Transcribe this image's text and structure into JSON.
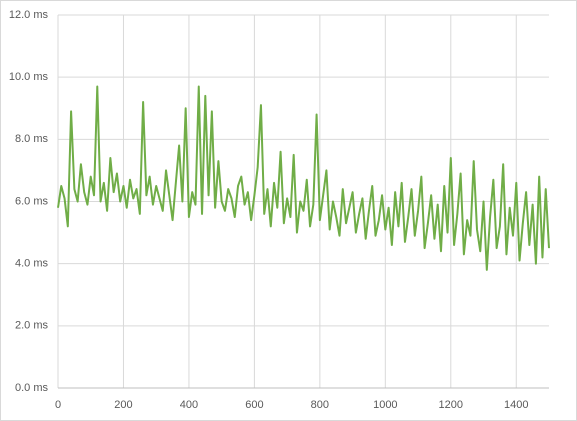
{
  "chart_data": {
    "type": "line",
    "x": [
      0,
      10,
      20,
      30,
      40,
      50,
      60,
      70,
      80,
      90,
      100,
      110,
      120,
      130,
      140,
      150,
      160,
      170,
      180,
      190,
      200,
      210,
      220,
      230,
      240,
      250,
      260,
      270,
      280,
      290,
      300,
      310,
      320,
      330,
      340,
      350,
      360,
      370,
      380,
      390,
      400,
      410,
      420,
      430,
      440,
      450,
      460,
      470,
      480,
      490,
      500,
      510,
      520,
      530,
      540,
      550,
      560,
      570,
      580,
      590,
      600,
      610,
      620,
      630,
      640,
      650,
      660,
      670,
      680,
      690,
      700,
      710,
      720,
      730,
      740,
      750,
      760,
      770,
      780,
      790,
      800,
      810,
      820,
      830,
      840,
      850,
      860,
      870,
      880,
      890,
      900,
      910,
      920,
      930,
      940,
      950,
      960,
      970,
      980,
      990,
      1000,
      1010,
      1020,
      1030,
      1040,
      1050,
      1060,
      1070,
      1080,
      1090,
      1100,
      1110,
      1120,
      1130,
      1140,
      1150,
      1160,
      1170,
      1180,
      1190,
      1200,
      1210,
      1220,
      1230,
      1240,
      1250,
      1260,
      1270,
      1280,
      1290,
      1300,
      1310,
      1320,
      1330,
      1340,
      1350,
      1360,
      1370,
      1380,
      1390,
      1400,
      1410,
      1420,
      1430,
      1440,
      1450,
      1460,
      1470,
      1480,
      1490,
      1500
    ],
    "series": [
      {
        "color": "#70ad47",
        "values": [
          5.8,
          6.5,
          6.1,
          5.2,
          8.9,
          6.4,
          6.0,
          7.2,
          6.3,
          5.9,
          6.8,
          6.2,
          9.7,
          6.0,
          6.6,
          5.7,
          7.4,
          6.3,
          6.9,
          6.0,
          6.5,
          5.8,
          6.7,
          6.1,
          6.4,
          5.6,
          9.2,
          6.2,
          6.8,
          5.9,
          6.5,
          6.1,
          5.7,
          7.0,
          6.2,
          5.4,
          6.6,
          7.8,
          6.0,
          9.0,
          5.5,
          6.3,
          5.9,
          9.7,
          5.6,
          9.4,
          6.2,
          8.9,
          5.8,
          7.3,
          6.0,
          5.7,
          6.4,
          6.1,
          5.5,
          6.5,
          6.8,
          5.9,
          6.3,
          5.4,
          6.2,
          7.1,
          9.1,
          5.6,
          6.4,
          5.2,
          6.6,
          5.8,
          7.6,
          5.3,
          6.1,
          5.5,
          7.5,
          5.0,
          6.0,
          5.7,
          6.7,
          5.2,
          5.9,
          8.8,
          5.4,
          6.2,
          7.0,
          5.1,
          6.0,
          5.5,
          4.9,
          6.4,
          5.3,
          5.8,
          6.3,
          5.0,
          5.6,
          6.1,
          4.8,
          5.7,
          6.5,
          4.9,
          5.4,
          6.2,
          5.1,
          5.8,
          4.6,
          6.3,
          5.2,
          6.6,
          4.7,
          5.5,
          6.4,
          4.9,
          5.7,
          6.8,
          4.5,
          5.3,
          6.2,
          4.8,
          5.9,
          4.4,
          6.5,
          5.0,
          7.4,
          4.6,
          5.6,
          6.9,
          4.3,
          5.4,
          4.9,
          7.3,
          5.1,
          4.4,
          6.0,
          3.8,
          5.5,
          6.7,
          4.5,
          5.2,
          7.2,
          4.3,
          5.8,
          4.9,
          6.6,
          4.1,
          5.3,
          6.3,
          4.6,
          5.9,
          4.0,
          6.8,
          4.2,
          6.4,
          4.5
        ]
      }
    ],
    "xlim": [
      0,
      1500
    ],
    "xticks": [
      0,
      200,
      400,
      600,
      800,
      1000,
      1200,
      1400
    ],
    "ylim": [
      0,
      12
    ],
    "yticks": [
      {
        "value": 0,
        "label": "0.0 ms"
      },
      {
        "value": 2,
        "label": "2.0 ms"
      },
      {
        "value": 4,
        "label": "4.0 ms"
      },
      {
        "value": 6,
        "label": "6.0 ms"
      },
      {
        "value": 8,
        "label": "8.0 ms"
      },
      {
        "value": 10,
        "label": "10.0 ms"
      },
      {
        "value": 12,
        "label": "12.0 ms"
      }
    ],
    "grid": true
  }
}
